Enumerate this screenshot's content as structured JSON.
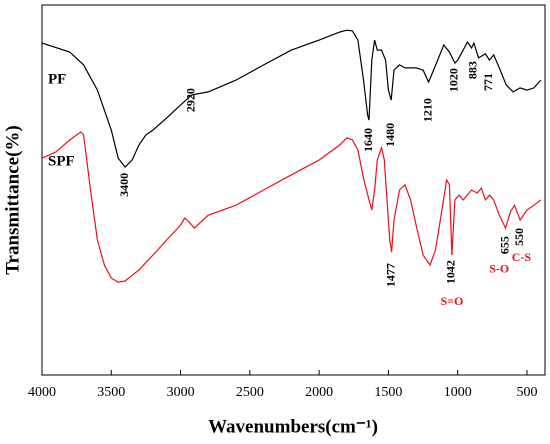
{
  "chart_data": {
    "type": "line",
    "xlabel": "Wavenumbers(cm⁻¹)",
    "ylabel": "Transmittance(%)",
    "xlim": [
      4000,
      370
    ],
    "xticks": [
      4000,
      3500,
      3000,
      2500,
      2000,
      1500,
      1000,
      500
    ],
    "ylim": [
      0,
      100
    ],
    "series": [
      {
        "name": "PF",
        "color": "#000000",
        "x": [
          4000,
          3800,
          3700,
          3600,
          3500,
          3450,
          3400,
          3350,
          3300,
          3250,
          3200,
          3100,
          3000,
          2920,
          2800,
          2600,
          2400,
          2200,
          2000,
          1850,
          1800,
          1760,
          1720,
          1680,
          1650,
          1640,
          1620,
          1600,
          1580,
          1550,
          1520,
          1500,
          1480,
          1460,
          1420,
          1380,
          1300,
          1250,
          1210,
          1180,
          1150,
          1100,
          1060,
          1020,
          1000,
          960,
          930,
          900,
          883,
          850,
          800,
          771,
          740,
          700,
          650,
          600,
          550,
          500,
          450,
          400
        ],
        "values": [
          89.7,
          87.3,
          83.8,
          77.0,
          66.2,
          58.6,
          56.2,
          58.1,
          62.2,
          64.9,
          66.2,
          69.5,
          73.0,
          75.7,
          76.5,
          79.7,
          83.8,
          87.8,
          90.5,
          92.7,
          93.2,
          93.0,
          90.5,
          79.7,
          70.3,
          68.9,
          85.1,
          90.5,
          87.8,
          87.8,
          85.1,
          77.0,
          74.3,
          82.4,
          83.8,
          83.0,
          83.0,
          82.4,
          79.2,
          81.9,
          84.6,
          89.2,
          87.3,
          84.3,
          85.1,
          87.8,
          90.0,
          88.4,
          89.7,
          85.7,
          86.8,
          85.1,
          86.5,
          83.0,
          78.4,
          76.5,
          77.6,
          77.0,
          77.6,
          79.7
        ]
      },
      {
        "name": "SPF",
        "color": "#e8101a",
        "x": [
          4000,
          3900,
          3800,
          3720,
          3700,
          3650,
          3600,
          3550,
          3500,
          3450,
          3400,
          3300,
          3200,
          3100,
          3000,
          2970,
          2940,
          2900,
          2800,
          2600,
          2400,
          2200,
          2000,
          1850,
          1800,
          1760,
          1720,
          1680,
          1640,
          1620,
          1600,
          1580,
          1550,
          1530,
          1510,
          1490,
          1477,
          1460,
          1420,
          1380,
          1340,
          1300,
          1250,
          1200,
          1160,
          1120,
          1080,
          1060,
          1042,
          1020,
          990,
          960,
          900,
          860,
          830,
          800,
          770,
          740,
          700,
          655,
          620,
          590,
          550,
          500,
          450,
          400
        ],
        "values": [
          58.6,
          60.3,
          63.5,
          65.7,
          64.9,
          50.0,
          36.5,
          29.7,
          26.2,
          25.1,
          25.4,
          28.4,
          32.4,
          36.5,
          40.5,
          42.4,
          41.4,
          39.7,
          43.2,
          45.9,
          50.0,
          54.1,
          58.1,
          62.2,
          64.1,
          63.5,
          60.8,
          53.2,
          47.3,
          44.6,
          50.0,
          58.1,
          61.4,
          58.1,
          47.3,
          36.5,
          33.2,
          41.9,
          50.0,
          51.4,
          47.3,
          40.5,
          32.4,
          29.7,
          33.8,
          43.2,
          52.7,
          51.4,
          32.4,
          47.3,
          48.6,
          47.3,
          50.0,
          49.2,
          50.5,
          47.3,
          48.6,
          47.3,
          43.2,
          39.7,
          44.1,
          45.9,
          41.9,
          44.6,
          45.9,
          47.3
        ]
      }
    ],
    "annotations": [
      {
        "text": "3400",
        "x": 3400,
        "y": 51.4,
        "color": "#000000",
        "rotated": true
      },
      {
        "text": "2920",
        "x": 2920,
        "y": 74.3,
        "color": "#000000",
        "rotated": true
      },
      {
        "text": "1640",
        "x": 1640,
        "y": 63.5,
        "color": "#000000",
        "rotated": true
      },
      {
        "text": "1480",
        "x": 1480,
        "y": 64.9,
        "color": "#000000",
        "rotated": true
      },
      {
        "text": "1210",
        "x": 1210,
        "y": 71.6,
        "color": "#000000",
        "rotated": true
      },
      {
        "text": "1020",
        "x": 1020,
        "y": 79.7,
        "color": "#000000",
        "rotated": true
      },
      {
        "text": "883",
        "x": 883,
        "y": 82.4,
        "color": "#000000",
        "rotated": true
      },
      {
        "text": "771",
        "x": 771,
        "y": 79.2,
        "color": "#000000",
        "rotated": true
      },
      {
        "text": "1477",
        "x": 1477,
        "y": 27.0,
        "color": "#000000",
        "rotated": true
      },
      {
        "text": "1042",
        "x": 1042,
        "y": 27.8,
        "color": "#000000",
        "rotated": true
      },
      {
        "text": "S=O",
        "x": 1042,
        "y": 19.7,
        "color": "#e8101a",
        "rotated": false
      },
      {
        "text": "655",
        "x": 655,
        "y": 35.1,
        "color": "#000000",
        "rotated": true
      },
      {
        "text": "S-O",
        "x": 700,
        "y": 28.4,
        "color": "#e8101a",
        "rotated": false
      },
      {
        "text": "550",
        "x": 550,
        "y": 37.3,
        "color": "#000000",
        "rotated": true
      },
      {
        "text": "C-S",
        "x": 540,
        "y": 31.6,
        "color": "#e8101a",
        "rotated": false
      }
    ]
  }
}
